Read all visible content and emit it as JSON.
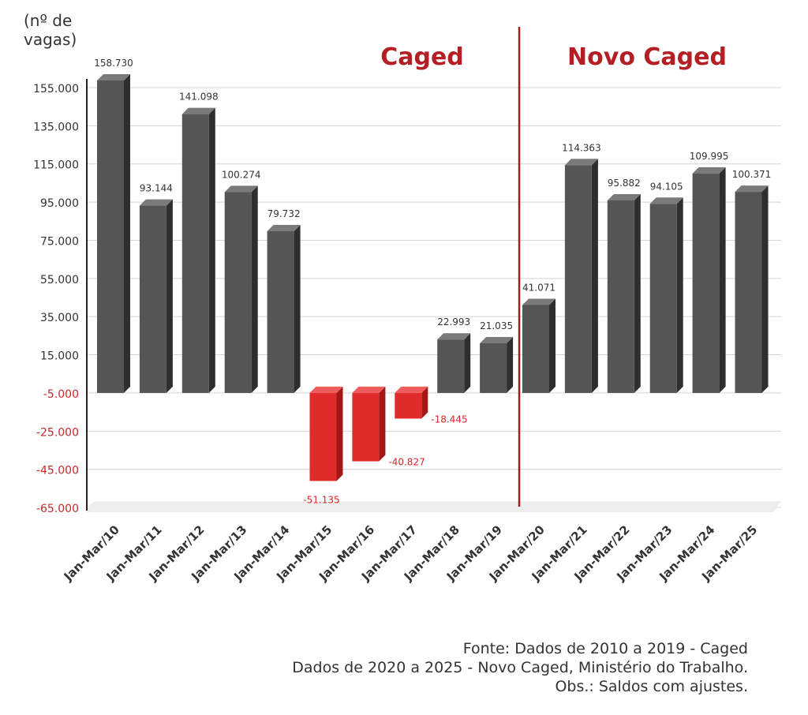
{
  "chart_data": {
    "type": "bar",
    "unit_label": "(nº de\nvagas)",
    "categories": [
      "Jan-Mar/10",
      "Jan-Mar/11",
      "Jan-Mar/12",
      "Jan-Mar/13",
      "Jan-Mar/14",
      "Jan-Mar/15",
      "Jan-Mar/16",
      "Jan-Mar/17",
      "Jan-Mar/18",
      "Jan-Mar/19",
      "Jan-Mar/20",
      "Jan-Mar/21",
      "Jan-Mar/22",
      "Jan-Mar/23",
      "Jan-Mar/24",
      "Jan-Mar/25"
    ],
    "values": [
      158730,
      93144,
      141098,
      100274,
      79732,
      -51135,
      -40827,
      -18445,
      22993,
      21035,
      41071,
      114363,
      95882,
      94105,
      109995,
      100371
    ],
    "value_labels": [
      "158.730",
      "93.144",
      "141.098",
      "100.274",
      "79.732",
      "-51.135",
      "-40.827",
      "-18.445",
      "22.993",
      "21.035",
      "41.071",
      "114.363",
      "95.882",
      "94.105",
      "109.995",
      "100.371"
    ],
    "yticks": [
      155000,
      135000,
      115000,
      95000,
      75000,
      55000,
      35000,
      15000,
      -5000,
      -25000,
      -45000,
      -65000
    ],
    "ytick_labels": [
      "155.000",
      "135.000",
      "115.000",
      "95.000",
      "75.000",
      "55.000",
      "35.000",
      "15.000",
      "-5.000",
      "-25.000",
      "-45.000",
      "-65.000"
    ],
    "ylim": [
      -65000,
      155000
    ],
    "grid": true,
    "section_labels": [
      "Caged",
      "Novo Caged"
    ],
    "divider_after_category": "Jan-Mar/19",
    "colors": {
      "positive_bar": "#555555",
      "negative_bar": "#e02b2b",
      "section_label": "#b41f24",
      "divider": "#a31d1d",
      "negative_tick_label": "#c42b2b",
      "negative_value_label": "#d9262a"
    }
  },
  "source_note": [
    "Fonte: Dados de 2010 a 2019 - Caged",
    "Dados de 2020 a 2025 - Novo Caged, Ministério do Trabalho.",
    "Obs.: Saldos com ajustes."
  ]
}
